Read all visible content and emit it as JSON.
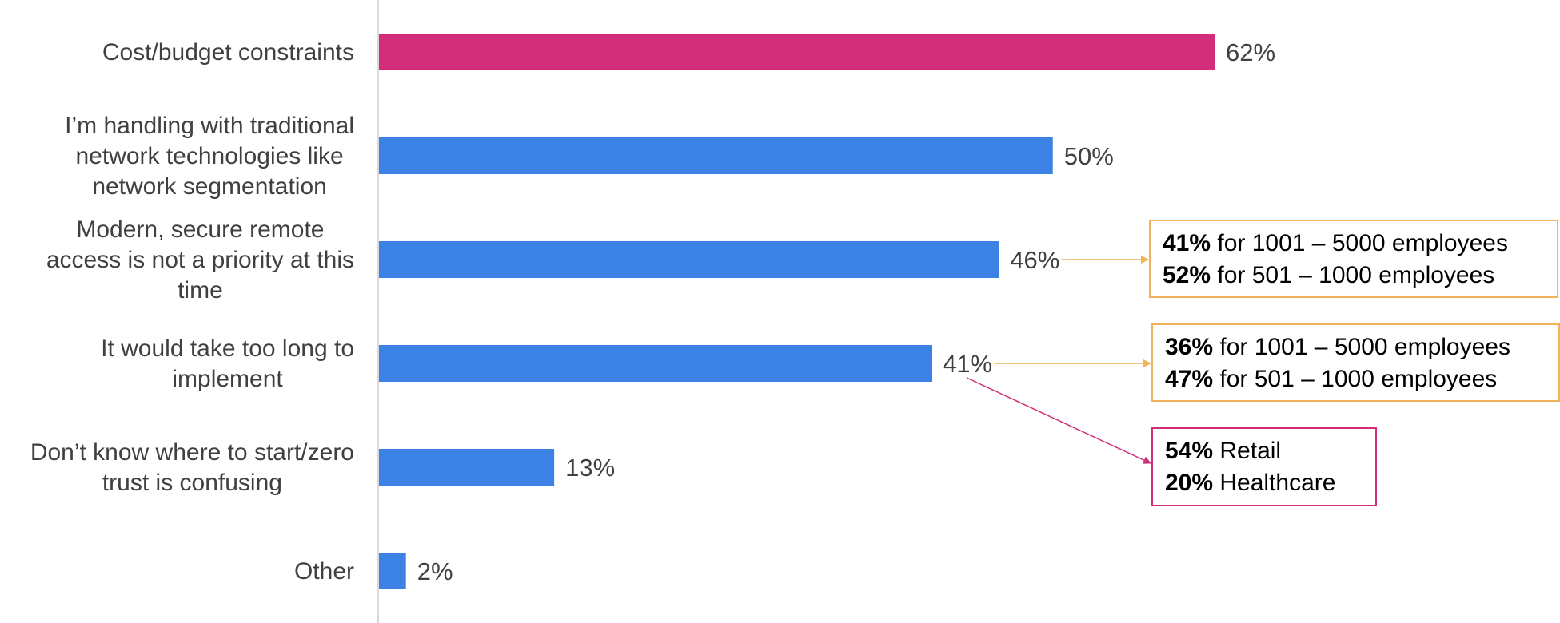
{
  "chart_data": {
    "type": "bar",
    "orientation": "horizontal",
    "categories": [
      [
        "Cost/budget constraints"
      ],
      [
        "I’m handling with traditional",
        "network technologies like",
        "network segmentation"
      ],
      [
        "Modern, secure remote",
        "access is not a priority at this",
        "time"
      ],
      [
        "It would take too long to",
        "implement"
      ],
      [
        "Don’t know where to start/zero",
        "trust is confusing"
      ],
      [
        "Other"
      ]
    ],
    "values": [
      62,
      50,
      46,
      41,
      13,
      2
    ],
    "value_labels": [
      "62%",
      "50%",
      "46%",
      "41%",
      "13%",
      "2%"
    ],
    "xlim": [
      0,
      100
    ],
    "grid": false,
    "colors": {
      "highlight_bar": "#D12D78",
      "bar": "#3B82E4",
      "axis_line": "#D9D9D9",
      "callout_orange": "#F0B35A",
      "callout_magenta": "#D12D78"
    },
    "annotations": [
      {
        "target_category": 2,
        "color": "#F0B35A",
        "lines": [
          {
            "bold": "41%",
            "text": " for 1001 – 5000 employees"
          },
          {
            "bold": "52%",
            "text": " for 501 – 1000 employees"
          }
        ]
      },
      {
        "target_category": 3,
        "color": "#F0B35A",
        "lines": [
          {
            "bold": "36%",
            "text": " for 1001 – 5000 employees"
          },
          {
            "bold": "47%",
            "text": " for 501 – 1000 employees"
          }
        ]
      },
      {
        "target_category": 3,
        "color": "#D12D78",
        "lines": [
          {
            "bold": "54%",
            "text": " Retail"
          },
          {
            "bold": "20%",
            "text": " Healthcare"
          }
        ]
      }
    ]
  }
}
